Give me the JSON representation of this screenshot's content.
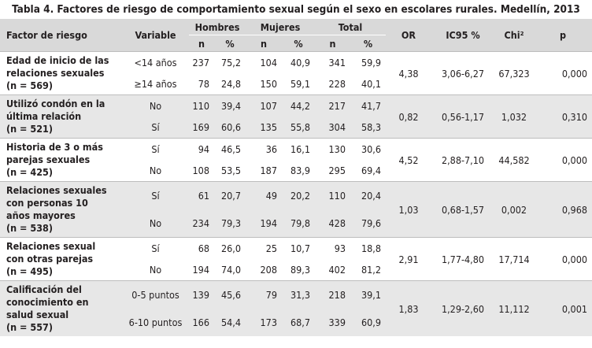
{
  "title": "Tabla 4. Factores de riesgo de comportamiento sexual según el sexo en escolares rurales. Medellín, 2013",
  "header": {
    "factor": "Factor de riesgo",
    "variable": "Variable",
    "hombres": "Hombres",
    "mujeres": "Mujeres",
    "total": "Total",
    "or": "OR",
    "ic": "IC95 %",
    "chi": "Chi²",
    "p": "p",
    "sub": [
      "n",
      "%",
      "n",
      "%",
      "n",
      "%"
    ]
  },
  "rows": [
    {
      "factor": [
        "Edad de inicio de las",
        "relaciones sexuales",
        "(n = 569)"
      ],
      "sub": [
        [
          "<14 años",
          "237",
          "75,2",
          "104",
          "40,9",
          "341",
          "59,9"
        ],
        [
          "≥14 años",
          "78",
          "24,8",
          "150",
          "59,1",
          "228",
          "40,1"
        ]
      ],
      "or": "4,38",
      "ic": "3,06-6,27",
      "chi": "67,323",
      "p": "0,000"
    },
    {
      "factor": [
        "Utilizó condón en la",
        "última relación",
        "(n = 521)"
      ],
      "sub": [
        [
          "No",
          "110",
          "39,4",
          "107",
          "44,2",
          "217",
          "41,7"
        ],
        [
          "Sí",
          "169",
          "60,6",
          "135",
          "55,8",
          "304",
          "58,3"
        ]
      ],
      "or": "0,82",
      "ic": "0,56-1,17",
      "chi": "1,032",
      "p": "0,310"
    },
    {
      "factor": [
        "Historia de 3 o más",
        "parejas sexuales",
        "(n = 425)"
      ],
      "sub": [
        [
          "Sí",
          "94",
          "46,5",
          "36",
          "16,1",
          "130",
          "30,6"
        ],
        [
          "No",
          "108",
          "53,5",
          "187",
          "83,9",
          "295",
          "69,4"
        ]
      ],
      "or": "4,52",
      "ic": "2,88-7,10",
      "chi": "44,582",
      "p": "0,000"
    },
    {
      "factor": [
        "Relaciones sexuales",
        "con personas 10",
        "años mayores",
        "(n = 538)"
      ],
      "sub": [
        [
          "Sí",
          "61",
          "20,7",
          "49",
          "20,2",
          "110",
          "20,4"
        ],
        [
          "No",
          "234",
          "79,3",
          "194",
          "79,8",
          "428",
          "79,6"
        ]
      ],
      "or": "1,03",
      "ic": "0,68-1,57",
      "chi": "0,002",
      "p": "0,968"
    },
    {
      "factor": [
        "Relaciones sexual",
        "con otras parejas",
        "(n = 495)"
      ],
      "sub": [
        [
          "Sí",
          "68",
          "26,0",
          "25",
          "10,7",
          "93",
          "18,8"
        ],
        [
          "No",
          "194",
          "74,0",
          "208",
          "89,3",
          "402",
          "81,2"
        ]
      ],
      "or": "2,91",
      "ic": "1,77-4,80",
      "chi": "17,714",
      "p": "0,000"
    },
    {
      "factor": [
        "Calificación del",
        "conocimiento en",
        "salud sexual",
        "(n = 557)"
      ],
      "sub": [
        [
          "0-5 puntos",
          "139",
          "45,6",
          "79",
          "31,3",
          "218",
          "39,1"
        ],
        [
          "6-10 puntos",
          "166",
          "54,4",
          "173",
          "68,7",
          "339",
          "60,9"
        ]
      ],
      "or": "1,83",
      "ic": "1,29-2,60",
      "chi": "11,112",
      "p": "0,001"
    }
  ]
}
